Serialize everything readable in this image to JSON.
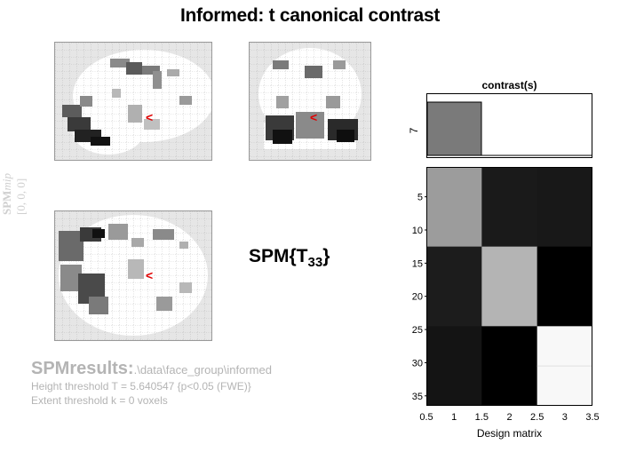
{
  "title": "Informed: t canonical contrast",
  "mip": {
    "label_spm": "SPM",
    "label_mip": "mip",
    "coords": "[0, 0, 0]",
    "marker_glyph": "<"
  },
  "stat": {
    "prefix": "SPM{T",
    "df": "33",
    "suffix": "}"
  },
  "results": {
    "head": "SPMresults:",
    "path": ".\\data\\face_group\\informed",
    "height_threshold": "Height threshold T = 5.640547  {p<0.05 (FWE)}",
    "extent_threshold": "Extent threshold k = 0 voxels"
  },
  "contrast": {
    "title": "contrast(s)",
    "index_label": "7",
    "weights": [
      1,
      0,
      0
    ]
  },
  "design": {
    "xlabel": "Design matrix",
    "xticks": [
      "0.5",
      "1",
      "1.5",
      "2",
      "2.5",
      "3",
      "3.5"
    ],
    "yticks": [
      "5",
      "10",
      "15",
      "20",
      "25",
      "30",
      "35"
    ],
    "matrix_gray": [
      [
        "#9c9c9c",
        "#1a1a1a",
        "#181818"
      ],
      [
        "#1c1c1c",
        "#b4b4b4",
        "#000000"
      ],
      [
        "#141414",
        "#000000",
        "#f8f8f8"
      ]
    ],
    "rows_per_block": 12
  },
  "colors": {
    "marker": "#e00000",
    "results_text": "#b4b4b4",
    "mip_text": "#cfcfcf"
  }
}
